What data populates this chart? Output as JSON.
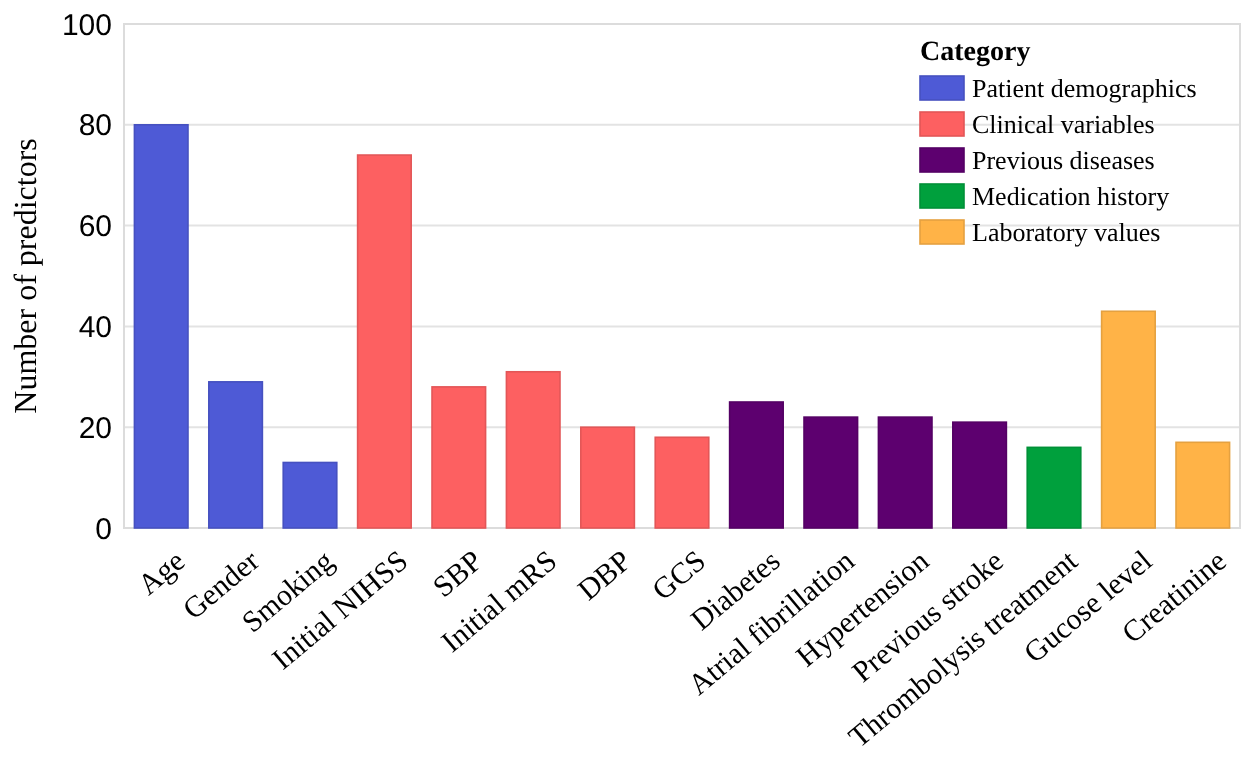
{
  "chart_data": {
    "type": "bar",
    "ylabel": "Number of predictors",
    "legend_title": "Category",
    "categories": [
      "Age",
      "Gender",
      "Smoking",
      "Initial NIHSS",
      "SBP",
      "Initial mRS",
      "DBP",
      "GCS",
      "Diabetes",
      "Atrial fibrillation",
      "Hypertension",
      "Previous stroke",
      "Thrombolysis treatment",
      "Gucose level",
      "Creatinine"
    ],
    "series": [
      {
        "name": "Patient demographics",
        "color": "#4e5ad6",
        "values": [
          80,
          29,
          13,
          null,
          null,
          null,
          null,
          null,
          null,
          null,
          null,
          null,
          null,
          null,
          null
        ]
      },
      {
        "name": "Clinical variables",
        "color": "#fd6061",
        "values": [
          null,
          null,
          null,
          74,
          28,
          31,
          20,
          18,
          null,
          null,
          null,
          null,
          null,
          null,
          null
        ]
      },
      {
        "name": "Previous diseases",
        "color": "#5d006f",
        "values": [
          null,
          null,
          null,
          null,
          null,
          null,
          null,
          null,
          25,
          22,
          22,
          21,
          null,
          null,
          null
        ]
      },
      {
        "name": "Medication history",
        "color": "#00a03d",
        "values": [
          null,
          null,
          null,
          null,
          null,
          null,
          null,
          null,
          null,
          null,
          null,
          null,
          16,
          null,
          null
        ]
      },
      {
        "name": "Laboratory values",
        "color": "#ffb347",
        "values": [
          null,
          null,
          null,
          null,
          null,
          null,
          null,
          null,
          null,
          null,
          null,
          null,
          null,
          43,
          17
        ]
      }
    ],
    "ylim": [
      0,
      100
    ],
    "yticks": [
      0,
      20,
      40,
      60,
      80,
      100
    ],
    "grid": "y",
    "legend": "top right"
  }
}
